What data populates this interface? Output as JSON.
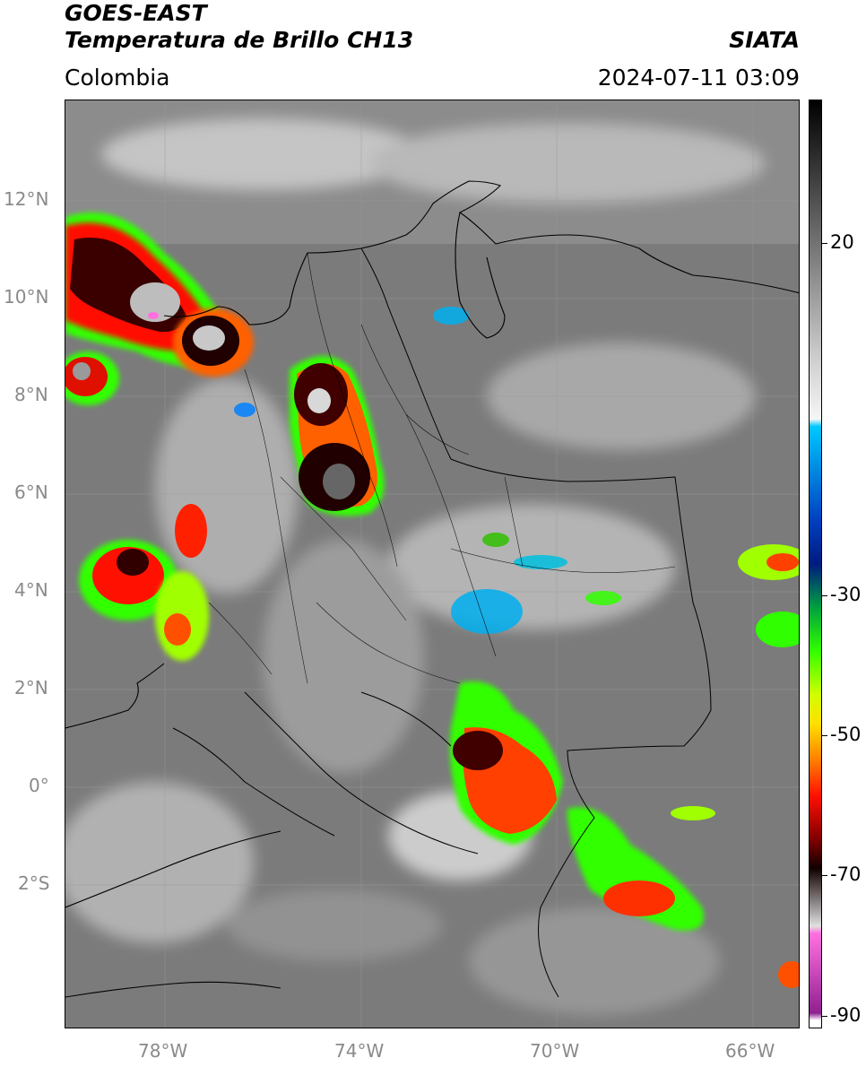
{
  "header": {
    "satellite": "GOES-EAST",
    "product": "Temperatura de Brillo CH13",
    "region": "Colombia",
    "agency": "SIATA",
    "datetime": "2024-07-11 03:09"
  },
  "map": {
    "lat_labels": [
      "12°N",
      "10°N",
      "8°N",
      "6°N",
      "4°N",
      "2°N",
      "0°",
      "2°S"
    ],
    "lon_labels": [
      "78°W",
      "74°W",
      "70°W",
      "66°W"
    ]
  },
  "colorbar": {
    "labels": [
      "20",
      "-30",
      "-50",
      "-70",
      "-90"
    ],
    "range": [
      -92,
      36
    ],
    "stops": [
      {
        "value": 36,
        "color": "#000000"
      },
      {
        "value": 15,
        "color": "#7a7a7a"
      },
      {
        "value": 0,
        "color": "#d0d0d0"
      },
      {
        "value": -8,
        "color": "#f6f6f6"
      },
      {
        "value": -9,
        "color": "#00c8ff"
      },
      {
        "value": -22,
        "color": "#0040c0"
      },
      {
        "value": -28,
        "color": "#001a80"
      },
      {
        "value": -34,
        "color": "#00a040"
      },
      {
        "value": -40,
        "color": "#30ff00"
      },
      {
        "value": -46,
        "color": "#d0ff00"
      },
      {
        "value": -50,
        "color": "#ffe000"
      },
      {
        "value": -55,
        "color": "#ff8000"
      },
      {
        "value": -60,
        "color": "#ff1000"
      },
      {
        "value": -66,
        "color": "#800000"
      },
      {
        "value": -70,
        "color": "#100000"
      },
      {
        "value": -78,
        "color": "#e0e0e0"
      },
      {
        "value": -79,
        "color": "#ff70e0"
      },
      {
        "value": -90,
        "color": "#902090"
      },
      {
        "value": -91,
        "color": "#ffffff"
      }
    ]
  }
}
